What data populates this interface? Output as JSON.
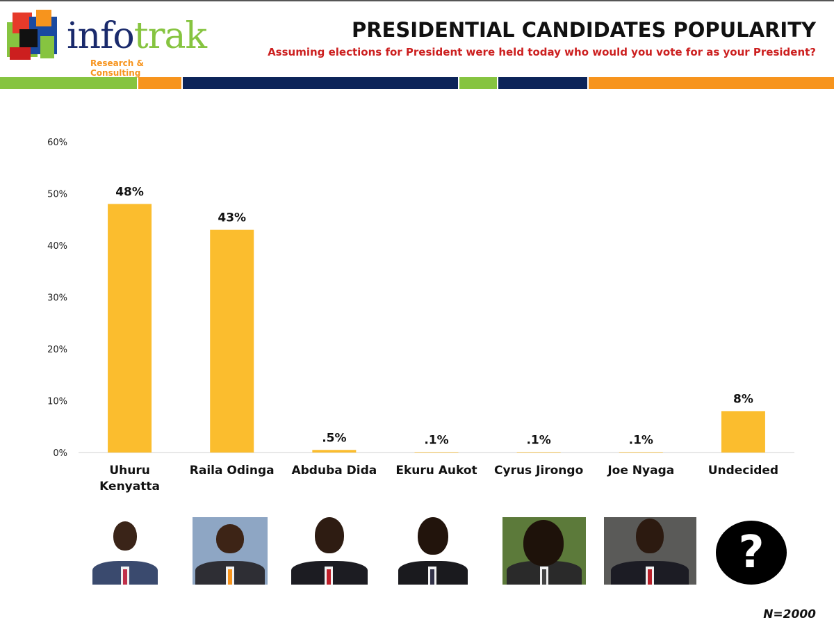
{
  "logo": {
    "word_main": "info",
    "word_accent": "trak",
    "subtitle": "Research & Consulting"
  },
  "header": {
    "title": "PRESIDENTIAL CANDIDATES POPULARITY",
    "subtitle": "Assuming elections for President were held today who would you vote for as your President?"
  },
  "colors": {
    "bar": "#FBBD2E",
    "green": "#86C440",
    "orange": "#F7941D",
    "navy": "#0C2459",
    "red": "#CC1F1F"
  },
  "footer": {
    "sample": "N=2000"
  },
  "photos": [
    {
      "name": "uhuru-kenyatta-photo"
    },
    {
      "name": "raila-odinga-photo"
    },
    {
      "name": "abduba-dida-photo"
    },
    {
      "name": "ekuru-aukot-photo"
    },
    {
      "name": "cyrus-jirongo-photo"
    },
    {
      "name": "joe-nyaga-photo"
    },
    {
      "name": "undecided-question-icon",
      "glyph": "?"
    }
  ],
  "chart_data": {
    "type": "bar",
    "title": "PRESIDENTIAL CANDIDATES POPULARITY",
    "categories": [
      [
        "Uhuru",
        "Kenyatta"
      ],
      [
        "Raila Odinga"
      ],
      [
        "Abduba Dida"
      ],
      [
        "Ekuru Aukot"
      ],
      [
        "Cyrus Jirongo"
      ],
      [
        "Joe Nyaga"
      ],
      [
        "Undecided"
      ]
    ],
    "values": [
      48,
      43,
      0.5,
      0.1,
      0.1,
      0.1,
      8
    ],
    "data_labels": [
      "48%",
      "43%",
      ".5%",
      ".1%",
      ".1%",
      ".1%",
      "8%"
    ],
    "yticks": [
      0,
      10,
      20,
      30,
      40,
      50,
      60
    ],
    "ytick_labels": [
      "0%",
      "10%",
      "20%",
      "30%",
      "40%",
      "50%",
      "60%"
    ],
    "ylim": [
      0,
      60
    ],
    "xlabel": "",
    "ylabel": "",
    "grid": false
  }
}
